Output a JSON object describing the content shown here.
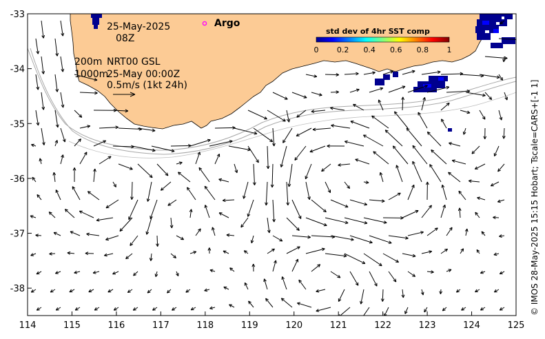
{
  "map": {
    "date": "25-May-2025",
    "time": "08Z",
    "isobath_shallow": "200m",
    "isobath_deep": "1000m",
    "product": "NRT00 GSL",
    "analysis_time": "25-May 00:00Z",
    "scale_label": "0.5m/s (1kt 24h)",
    "argo_label": "Argo",
    "credit": "© IMOS 28-May-2025 15:15 Hobart; Tscale=CARS+[-1 1]",
    "lon_range": [
      114,
      125
    ],
    "lat_range": [
      -38.5,
      -33
    ],
    "colors": {
      "land": "#fccb95",
      "argo": "#ff00ff",
      "contour": "#a8a8a8"
    }
  },
  "x_ticks": [
    "114",
    "115",
    "116",
    "117",
    "118",
    "119",
    "120",
    "121",
    "122",
    "123",
    "124",
    "125"
  ],
  "y_ticks": [
    "-33",
    "-34",
    "-35",
    "-36",
    "-37",
    "-38"
  ],
  "colorbar": {
    "title": "std dev of 4hr SST comp",
    "ticks": [
      "0",
      "0.2",
      "0.4",
      "0.6",
      "0.8",
      "1"
    ],
    "range": [
      0,
      1
    ]
  }
}
